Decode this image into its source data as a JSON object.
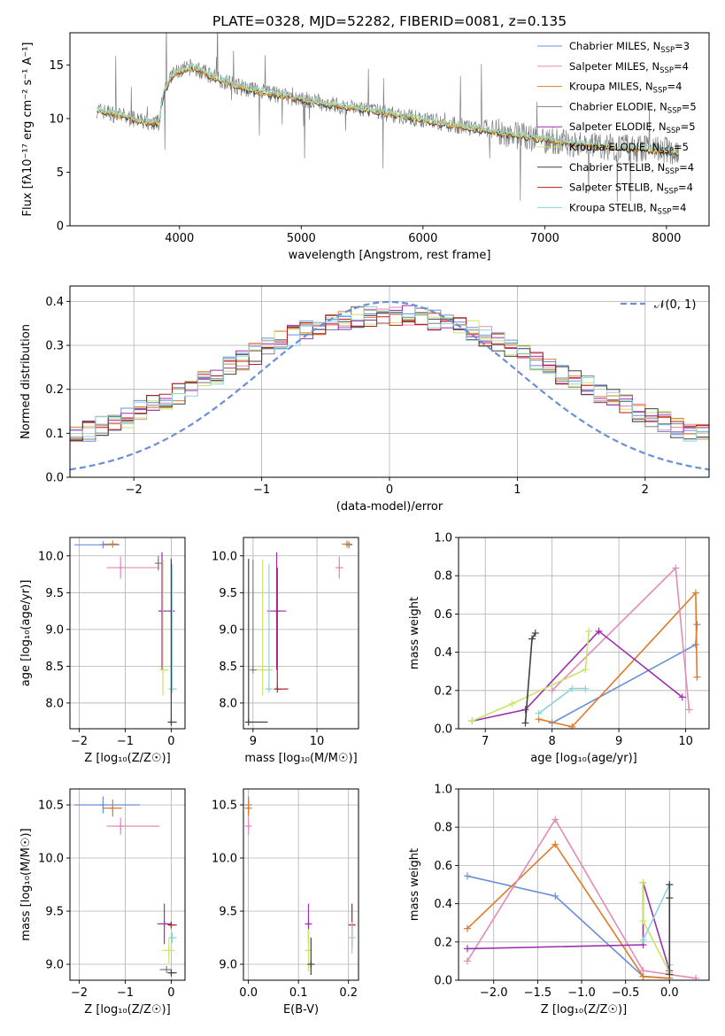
{
  "title": "PLATE=0328, MJD=52282, FIBERID=0081, z=0.135",
  "colors": {
    "blue": "#6a8fd8",
    "pink": "#e48ab8",
    "orange": "#e07a26",
    "gray": "#808080",
    "purple": "#9b2fae",
    "lime": "#c8e46a",
    "dark": "#404040",
    "red": "#b41e1e",
    "cyan": "#8fd3d8"
  },
  "chart_data": [
    {
      "id": "spectrum",
      "type": "line",
      "xlabel": "wavelength [Angstrom, rest frame]",
      "ylabel": "Flux [fλ10⁻¹⁷ erg cm⁻² s⁻¹ A⁻¹]",
      "xlim": [
        3100,
        8350
      ],
      "ylim": [
        0,
        18
      ],
      "xticks": [
        4000,
        5000,
        6000,
        7000,
        8000
      ],
      "yticks": [
        0,
        5,
        10,
        15
      ],
      "grid": false,
      "legend_position": "top-right",
      "legend": [
        {
          "label": "Chabrier MILES, N",
          "sub": "SSP",
          "tail": "=3",
          "color": "blue"
        },
        {
          "label": "Salpeter MILES, N",
          "sub": "SSP",
          "tail": "=4",
          "color": "pink"
        },
        {
          "label": "Kroupa MILES, N",
          "sub": "SSP",
          "tail": "=4",
          "color": "orange"
        },
        {
          "label": "Chabrier ELODIE, N",
          "sub": "SSP",
          "tail": "=5",
          "color": "gray"
        },
        {
          "label": "Salpeter ELODIE, N",
          "sub": "SSP",
          "tail": "=5",
          "color": "purple"
        },
        {
          "label": "Kroupa ELODIE, N",
          "sub": "SSP",
          "tail": "=5",
          "color": "lime"
        },
        {
          "label": "Chabrier STELIB, N",
          "sub": "SSP",
          "tail": "=4",
          "color": "dark"
        },
        {
          "label": "Salpeter STELIB, N",
          "sub": "SSP",
          "tail": "=4",
          "color": "red"
        },
        {
          "label": "Kroupa STELIB, N",
          "sub": "SSP",
          "tail": "=4",
          "color": "cyan"
        }
      ],
      "continuum": [
        [
          3320,
          10.8
        ],
        [
          3500,
          10.3
        ],
        [
          3700,
          9.7
        ],
        [
          3830,
          9.6
        ],
        [
          3870,
          12.5
        ],
        [
          3950,
          14.2
        ],
        [
          4100,
          14.8
        ],
        [
          4300,
          13.8
        ],
        [
          4500,
          12.9
        ],
        [
          4800,
          12.2
        ],
        [
          5200,
          11.4
        ],
        [
          5600,
          10.7
        ],
        [
          6000,
          9.9
        ],
        [
          6400,
          9.1
        ],
        [
          6800,
          8.4
        ],
        [
          7200,
          7.7
        ],
        [
          7600,
          7.3
        ],
        [
          8000,
          7.0
        ],
        [
          8100,
          6.8
        ]
      ],
      "data_range": [
        3320,
        8100
      ]
    },
    {
      "id": "residuals",
      "type": "line",
      "xlabel": "(data-model)/error",
      "ylabel": "Normed distribution",
      "xlim": [
        -2.5,
        2.5
      ],
      "ylim": [
        0,
        0.435
      ],
      "xticks": [
        -2,
        -1,
        0,
        1,
        2
      ],
      "yticks": [
        0.0,
        0.1,
        0.2,
        0.3,
        0.4
      ],
      "grid": true,
      "legend_position": "top-right",
      "legend_label": "𝒩(0, 1)",
      "gaussian": {
        "mu": 0,
        "sigma": 1,
        "color": "blue"
      },
      "histogram_bins": 50
    },
    {
      "id": "age-vs-Z",
      "type": "scatter",
      "xlabel": "Z [log₁₀(Z/Z☉)]",
      "ylabel": "age  [log₁₀(age/yr)]",
      "xlim": [
        -2.2,
        0.3
      ],
      "ylim": [
        7.65,
        10.25
      ],
      "xticks": [
        -2,
        -1,
        0
      ],
      "yticks": [
        8.0,
        8.5,
        9.0,
        9.5,
        10.0
      ],
      "grid": true,
      "points": [
        {
          "c": "blue",
          "x": -1.48,
          "y": 10.15,
          "xerr": [
            0.62,
            0.36
          ],
          "yerr": [
            0,
            0
          ]
        },
        {
          "c": "orange",
          "x": -1.27,
          "y": 10.16,
          "xerr": [
            0.2,
            0.12
          ],
          "yerr": [
            0.02,
            0.02
          ]
        },
        {
          "c": "pink",
          "x": -1.1,
          "y": 9.84,
          "xerr": [
            0.3,
            0.85
          ],
          "yerr": [
            0.15,
            0.15
          ]
        },
        {
          "c": "purple",
          "x": -0.2,
          "y": 9.25,
          "xerr": [
            0.05,
            0.28
          ],
          "yerr": [
            0.8,
            0.8
          ]
        },
        {
          "c": "lime",
          "x": -0.18,
          "y": 8.45,
          "xerr": [
            0.05,
            0.12
          ],
          "yerr": [
            0.35,
            1.5
          ]
        },
        {
          "c": "cyan",
          "x": 0.02,
          "y": 8.19,
          "xerr": [
            0.02,
            0.1
          ],
          "yerr": [
            0.05,
            1.7
          ]
        },
        {
          "c": "gray",
          "x": -0.28,
          "y": 9.9,
          "xerr": [
            0,
            0
          ],
          "yerr": [
            0.1,
            0.1
          ]
        },
        {
          "c": "dark",
          "x": 0.0,
          "y": 7.74,
          "xerr": [
            0.02,
            0.12
          ],
          "yerr": [
            0,
            2.22
          ]
        }
      ]
    },
    {
      "id": "age-vs-mass",
      "type": "scatter",
      "xlabel": "mass [log₁₀(M/M☉)]",
      "ylabel": "",
      "xlim": [
        8.85,
        10.65
      ],
      "ylim": [
        7.65,
        10.25
      ],
      "xticks": [
        9,
        10
      ],
      "yticks": [
        8.0,
        8.5,
        9.0,
        9.5,
        10.0
      ],
      "grid": true,
      "points": [
        {
          "c": "blue",
          "x": 10.5,
          "y": 10.15,
          "xerr": [
            0.02,
            0.02
          ],
          "yerr": [
            0.03,
            0.03
          ]
        },
        {
          "c": "orange",
          "x": 10.47,
          "y": 10.16,
          "xerr": [
            0.08,
            0.08
          ],
          "yerr": [
            0.02,
            0.02
          ]
        },
        {
          "c": "pink",
          "x": 10.35,
          "y": 9.84,
          "xerr": [
            0.06,
            0.06
          ],
          "yerr": [
            0.15,
            0.15
          ]
        },
        {
          "c": "purple",
          "x": 9.37,
          "y": 9.25,
          "xerr": [
            0.15,
            0.15
          ],
          "yerr": [
            0.8,
            0.8
          ]
        },
        {
          "c": "red",
          "x": 9.38,
          "y": 8.19,
          "xerr": [
            0,
            0.17
          ],
          "yerr": [
            0,
            1.65
          ]
        },
        {
          "c": "lime",
          "x": 9.15,
          "y": 8.45,
          "xerr": [
            0.16,
            0.16
          ],
          "yerr": [
            0.35,
            1.5
          ]
        },
        {
          "c": "cyan",
          "x": 9.25,
          "y": 8.19,
          "xerr": [
            0.05,
            0.05
          ],
          "yerr": [
            0,
            1.7
          ]
        },
        {
          "c": "gray",
          "x": 9.0,
          "y": 8.45,
          "xerr": [
            0,
            0
          ],
          "yerr": [
            0,
            1.5
          ]
        },
        {
          "c": "dark",
          "x": 8.93,
          "y": 7.74,
          "xerr": [
            0,
            0.3
          ],
          "yerr": [
            0,
            2.22
          ]
        }
      ]
    },
    {
      "id": "weight-vs-age",
      "type": "line",
      "xlabel": "age  [log₁₀(age/yr)]",
      "ylabel": "mass weight",
      "xlim": [
        6.6,
        10.35
      ],
      "ylim": [
        0,
        1.0
      ],
      "xticks": [
        7,
        8,
        9,
        10
      ],
      "yticks": [
        0.0,
        0.2,
        0.4,
        0.6,
        0.8,
        1.0
      ],
      "grid": true,
      "series": [
        {
          "c": "blue",
          "x": [
            8.0,
            10.15,
            10.17
          ],
          "y": [
            0.03,
            0.44,
            0.545
          ]
        },
        {
          "c": "orange",
          "x": [
            7.8,
            8.3,
            10.15,
            10.17
          ],
          "y": [
            0.05,
            0.01,
            0.71,
            0.27
          ]
        },
        {
          "c": "pink",
          "x": [
            8.0,
            9.85,
            10.05
          ],
          "y": [
            0.2,
            0.84,
            0.1
          ]
        },
        {
          "c": "purple",
          "x": [
            6.8,
            7.6,
            8.7,
            9.95
          ],
          "y": [
            0.04,
            0.1,
            0.51,
            0.165
          ]
        },
        {
          "c": "lime",
          "x": [
            6.8,
            7.4,
            8.5,
            8.55
          ],
          "y": [
            0.04,
            0.13,
            0.31,
            0.51
          ]
        },
        {
          "c": "cyan",
          "x": [
            7.8,
            8.3,
            8.5
          ],
          "y": [
            0.08,
            0.21,
            0.21
          ]
        },
        {
          "c": "dark",
          "x": [
            7.6,
            7.7,
            7.75
          ],
          "y": [
            0.03,
            0.47,
            0.5
          ]
        }
      ]
    },
    {
      "id": "mass-vs-Z",
      "type": "scatter",
      "xlabel": "Z [log₁₀(Z/Z☉)]",
      "ylabel": "mass [log₁₀(M/M☉)]",
      "xlim": [
        -2.2,
        0.3
      ],
      "ylim": [
        8.85,
        10.65
      ],
      "xticks": [
        -2,
        -1,
        0
      ],
      "yticks": [
        9.0,
        9.5,
        10.0,
        10.5
      ],
      "grid": true,
      "points": [
        {
          "c": "blue",
          "x": -1.48,
          "y": 10.5,
          "xerr": [
            0.62,
            0.8
          ],
          "yerr": [
            0.08,
            0.08
          ]
        },
        {
          "c": "orange",
          "x": -1.27,
          "y": 10.47,
          "xerr": [
            0.2,
            0.2
          ],
          "yerr": [
            0.08,
            0.08
          ]
        },
        {
          "c": "pink",
          "x": -1.1,
          "y": 10.3,
          "xerr": [
            0.3,
            0.85
          ],
          "yerr": [
            0.08,
            0.08
          ]
        },
        {
          "c": "purple",
          "x": -0.15,
          "y": 9.38,
          "xerr": [
            0.15,
            0.15
          ],
          "yerr": [
            0.19,
            0.19
          ]
        },
        {
          "c": "red",
          "x": 0.0,
          "y": 9.37,
          "xerr": [
            0.05,
            0.12
          ],
          "yerr": [
            0.02,
            0.02
          ]
        },
        {
          "c": "cyan",
          "x": 0.02,
          "y": 9.25,
          "xerr": [
            0.05,
            0.1
          ],
          "yerr": [
            0.05,
            0.05
          ]
        },
        {
          "c": "lime",
          "x": -0.05,
          "y": 9.13,
          "xerr": [
            0.15,
            0.12
          ],
          "yerr": [
            0.12,
            0.12
          ]
        },
        {
          "c": "gray",
          "x": -0.1,
          "y": 8.95,
          "xerr": [
            0.15,
            0.1
          ],
          "yerr": [
            0,
            0
          ]
        },
        {
          "c": "dark",
          "x": 0.0,
          "y": 8.92,
          "xerr": [
            0.05,
            0.12
          ],
          "yerr": [
            0,
            0
          ]
        }
      ]
    },
    {
      "id": "mass-vs-EBV",
      "type": "scatter",
      "xlabel": "E(B-V)",
      "ylabel": "",
      "xlim": [
        -0.01,
        0.22
      ],
      "ylim": [
        8.85,
        10.65
      ],
      "xticks": [
        0.0,
        0.1,
        0.2
      ],
      "yticks": [
        9.0,
        9.5,
        10.0,
        10.5
      ],
      "grid": true,
      "points": [
        {
          "c": "blue",
          "x": 0.0,
          "y": 10.5,
          "xerr": [
            0,
            0
          ],
          "yerr": [
            0.08,
            0.08
          ]
        },
        {
          "c": "orange",
          "x": 0.0,
          "y": 10.47,
          "xerr": [
            0,
            0
          ],
          "yerr": [
            0.08,
            0.08
          ]
        },
        {
          "c": "pink",
          "x": 0.0,
          "y": 10.3,
          "xerr": [
            0,
            0
          ],
          "yerr": [
            0.08,
            0.08
          ]
        },
        {
          "c": "purple",
          "x": 0.12,
          "y": 9.38,
          "xerr": [
            0,
            0
          ],
          "yerr": [
            0.19,
            0.19
          ]
        },
        {
          "c": "lime",
          "x": 0.12,
          "y": 9.13,
          "xerr": [
            0,
            0
          ],
          "yerr": [
            0.2,
            0.2
          ]
        },
        {
          "c": "dark",
          "x": 0.125,
          "y": 9.0,
          "xerr": [
            0,
            0
          ],
          "yerr": [
            0.1,
            0.25
          ]
        },
        {
          "c": "red",
          "x": 0.207,
          "y": 9.37,
          "xerr": [
            0,
            0
          ],
          "yerr": [
            0.2,
            0.2
          ]
        },
        {
          "c": "cyan",
          "x": 0.207,
          "y": 9.25,
          "xerr": [
            0,
            0
          ],
          "yerr": [
            0.15,
            0.15
          ]
        }
      ]
    },
    {
      "id": "weight-vs-Z",
      "type": "line",
      "xlabel": "Z [log₁₀(Z/Z☉)]",
      "ylabel": "mass weight",
      "xlim": [
        -2.4,
        0.45
      ],
      "ylim": [
        0,
        1.0
      ],
      "xticks": [
        -2.0,
        -1.5,
        -1.0,
        -0.5,
        0.0
      ],
      "yticks": [
        0.0,
        0.2,
        0.4,
        0.6,
        0.8,
        1.0
      ],
      "grid": true,
      "series": [
        {
          "c": "blue",
          "x": [
            -2.3,
            -1.3,
            -0.3,
            0.0
          ],
          "y": [
            0.545,
            0.44,
            0.02,
            0.01
          ]
        },
        {
          "c": "orange",
          "x": [
            -2.3,
            -1.3,
            -0.3,
            0.0
          ],
          "y": [
            0.27,
            0.71,
            0.02,
            0.01
          ]
        },
        {
          "c": "pink",
          "x": [
            -2.3,
            -1.3,
            -0.3,
            0.3
          ],
          "y": [
            0.1,
            0.84,
            0.05,
            0.01
          ]
        },
        {
          "c": "purple",
          "x": [
            -2.3,
            -0.3,
            -0.3,
            0.0
          ],
          "y": [
            0.165,
            0.185,
            0.51,
            0.05
          ]
        },
        {
          "c": "lime",
          "x": [
            -0.3,
            -0.3,
            0.0
          ],
          "y": [
            0.51,
            0.31,
            0.04
          ]
        },
        {
          "c": "cyan",
          "x": [
            -0.3,
            0.0,
            0.0
          ],
          "y": [
            0.21,
            0.5,
            0.08
          ]
        },
        {
          "c": "dark",
          "x": [
            0.0,
            0.0,
            0.0
          ],
          "y": [
            0.5,
            0.43,
            0.03
          ]
        }
      ]
    }
  ]
}
